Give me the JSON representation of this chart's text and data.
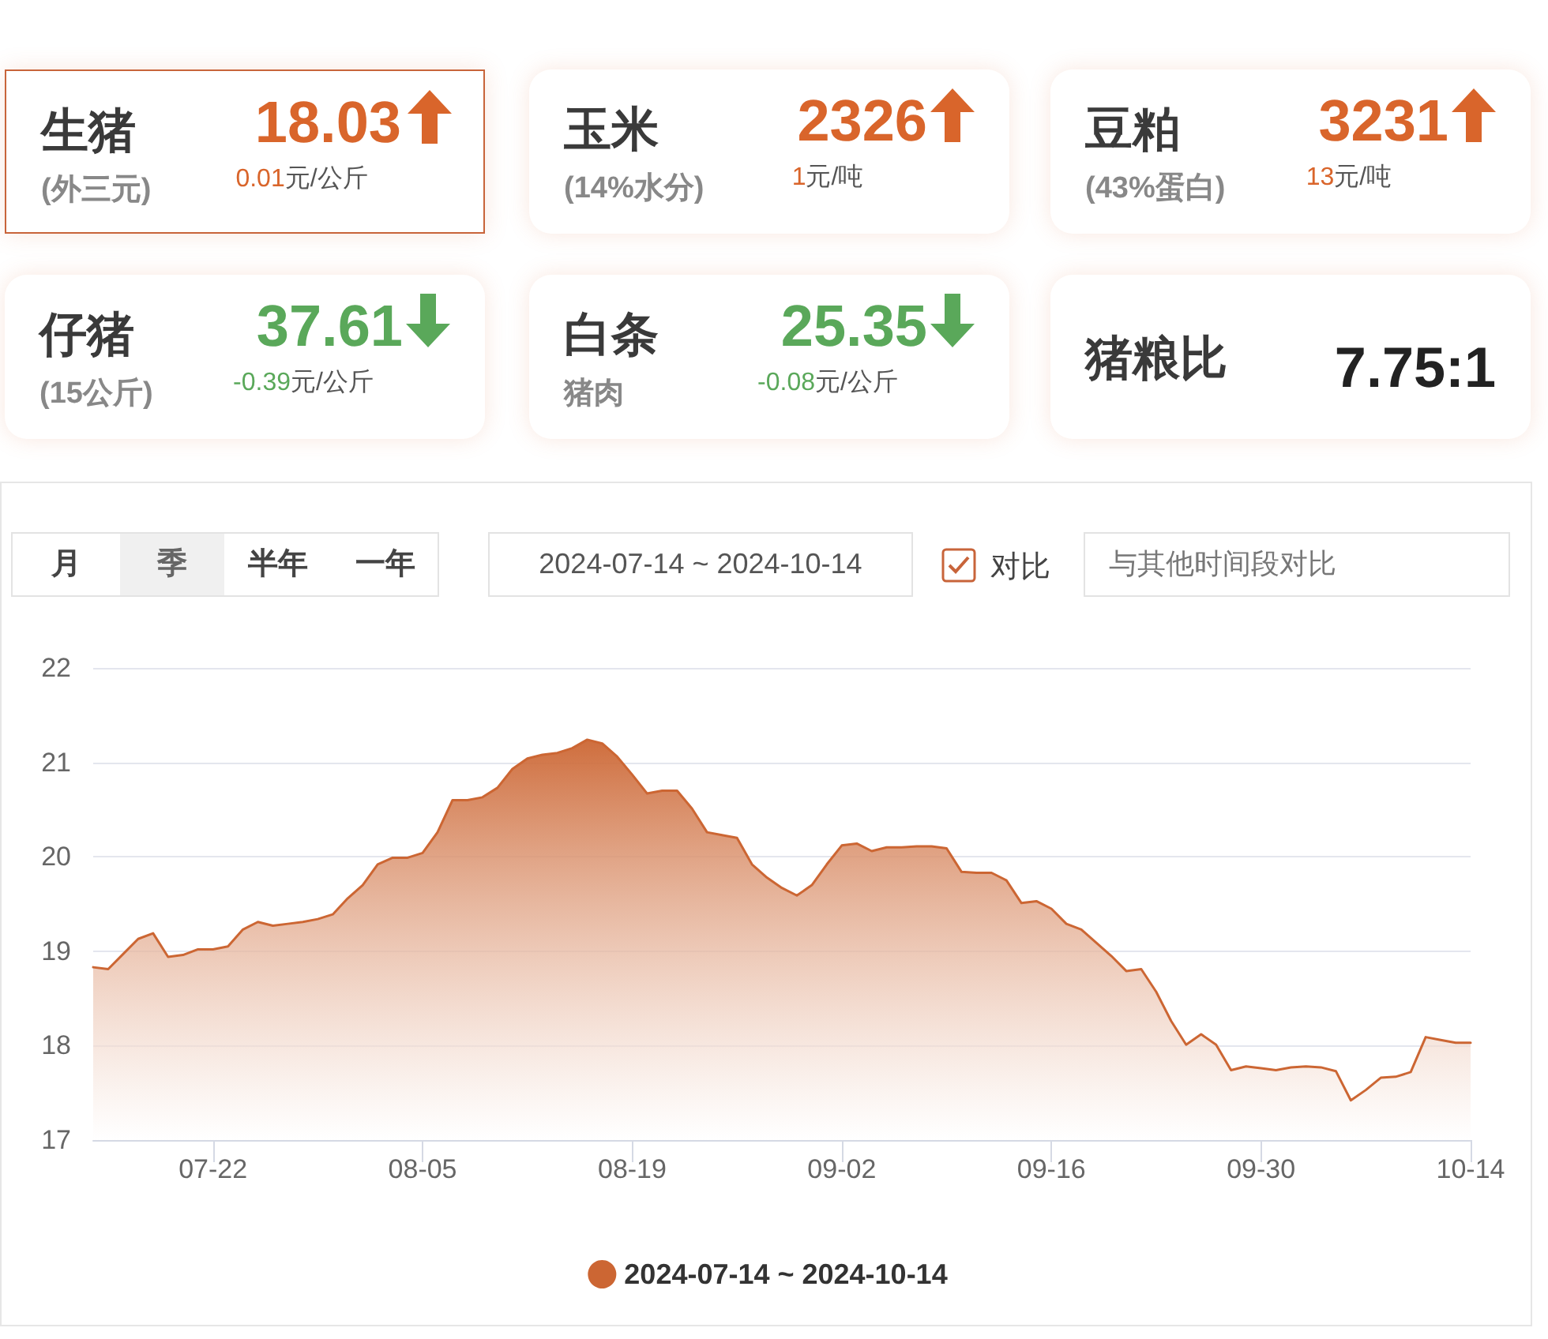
{
  "chart_data": [
    {
      "type": "other",
      "annotations": [
        "生猪",
        "(外三元)",
        "18.03",
        "0.01",
        "元/公斤",
        "玉米",
        "(14%水分)",
        "2326",
        "1",
        "元/吨",
        "豆粕",
        "(43%蛋白)",
        "3231",
        "13",
        "元/吨",
        "仔猪",
        "(15公斤)",
        "37.61",
        "-0.39",
        "元/公斤",
        "白条",
        "猪肉",
        "25.35",
        "-0.08",
        "元/公斤",
        "猪粮比",
        "7.75:1"
      ]
    },
    {
      "type": "area",
      "annotations": [
        "月",
        "季",
        "半年",
        "一年",
        "2024-07-14 ~ 2024-10-14",
        "对比",
        "与其他时间段对比"
      ],
      "categories": [
        null,
        null,
        null,
        null,
        null,
        null,
        null,
        null,
        "07-22",
        null,
        null,
        null,
        null,
        null,
        null,
        null,
        null,
        null,
        null,
        null,
        null,
        null,
        "08-05",
        null,
        null,
        null,
        null,
        null,
        null,
        null,
        null,
        null,
        null,
        null,
        null,
        null,
        "08-19",
        null,
        null,
        null,
        null,
        null,
        null,
        null,
        null,
        null,
        null,
        null,
        null,
        null,
        "09-02",
        null,
        null,
        null,
        null,
        null,
        null,
        null,
        null,
        null,
        null,
        null,
        null,
        null,
        "09-16",
        null,
        null,
        null,
        null,
        null,
        null,
        null,
        null,
        null,
        null,
        null,
        null,
        null,
        "09-30",
        null,
        null,
        null,
        null,
        null,
        null,
        null,
        null,
        null,
        null,
        null,
        null,
        null,
        "10-14"
      ],
      "series": [
        {
          "name": "2024-07-14 ~ 2024-10-14",
          "color": "#cc6633",
          "values": [
            18.83,
            18.81,
            18.97,
            19.13,
            19.19,
            18.94,
            18.96,
            19.02,
            19.02,
            19.05,
            19.23,
            19.31,
            19.27,
            19.29,
            19.31,
            19.34,
            19.39,
            19.56,
            19.7,
            19.92,
            19.99,
            19.99,
            20.04,
            20.26,
            20.6,
            20.6,
            20.63,
            20.73,
            20.93,
            21.04,
            21.08,
            21.1,
            21.15,
            21.24,
            21.2,
            21.06,
            20.87,
            20.67,
            20.7,
            20.7,
            20.51,
            20.26,
            20.23,
            20.2,
            19.92,
            19.78,
            19.67,
            19.59,
            19.7,
            19.92,
            20.12,
            20.14,
            20.06,
            20.1,
            20.1,
            20.11,
            20.11,
            20.09,
            19.84,
            19.83,
            19.83,
            19.75,
            19.51,
            19.53,
            19.45,
            19.29,
            19.23,
            19.09,
            18.95,
            18.79,
            18.81,
            18.57,
            18.26,
            18.01,
            18.12,
            18.01,
            17.74,
            17.78,
            17.76,
            17.74,
            17.77,
            17.78,
            17.77,
            17.73,
            17.42,
            17.53,
            17.66,
            17.67,
            17.72,
            18.09,
            18.06,
            18.03,
            18.03
          ]
        }
      ],
      "ylim": [
        17,
        22
      ],
      "yticks": [
        17,
        18,
        19,
        20,
        21,
        22
      ],
      "grid": "y",
      "legend": "bottom",
      "marker": "none",
      "line_style": "solid"
    }
  ]
}
